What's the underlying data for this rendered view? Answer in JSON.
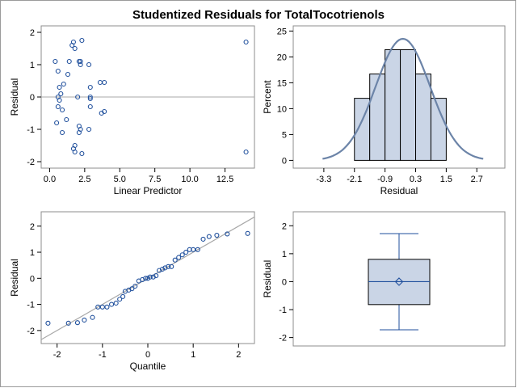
{
  "title": "Studentized Residuals for TotalTocotrienols",
  "colors": {
    "marker": "#1f4f9c",
    "bar_fill": "#cad5e6",
    "curve": "#6c84a8",
    "ref_line": "#a8a8a8",
    "box_line": "#1f4f9c"
  },
  "chart_data": [
    {
      "type": "scatter",
      "xlabel": "Linear Predictor",
      "ylabel": "Residual",
      "xlim": [
        -0.6,
        14.6
      ],
      "ylim": [
        -2.2,
        2.2
      ],
      "xticks": [
        "0.0",
        "2.5",
        "5.0",
        "7.5",
        "10.0",
        "12.5"
      ],
      "xtick_values": [
        0,
        2.5,
        5,
        7.5,
        10,
        12.5
      ],
      "yticks": [
        "-2",
        "-1",
        "0",
        "1",
        "2"
      ],
      "ytick_values": [
        -2,
        -1,
        0,
        1,
        2
      ],
      "reference_line_y": 0,
      "points": [
        [
          0.4,
          1.1
        ],
        [
          0.6,
          0.8
        ],
        [
          0.7,
          0.3
        ],
        [
          0.8,
          0.1
        ],
        [
          0.6,
          0.0
        ],
        [
          0.7,
          -0.1
        ],
        [
          0.6,
          -0.3
        ],
        [
          0.9,
          -0.4
        ],
        [
          0.5,
          -0.8
        ],
        [
          0.9,
          -1.1
        ],
        [
          1.0,
          0.4
        ],
        [
          1.3,
          0.7
        ],
        [
          1.2,
          -0.7
        ],
        [
          1.4,
          1.1
        ],
        [
          1.6,
          1.6
        ],
        [
          1.7,
          1.7
        ],
        [
          1.8,
          1.5
        ],
        [
          2.1,
          1.1
        ],
        [
          2.2,
          1.1
        ],
        [
          2.2,
          1.0
        ],
        [
          2.3,
          1.75
        ],
        [
          2.0,
          0.0
        ],
        [
          2.1,
          -0.9
        ],
        [
          2.2,
          -1.0
        ],
        [
          2.1,
          -1.1
        ],
        [
          1.8,
          -1.5
        ],
        [
          1.7,
          -1.6
        ],
        [
          1.8,
          -1.7
        ],
        [
          2.3,
          -1.75
        ],
        [
          2.8,
          1.0
        ],
        [
          2.9,
          0.3
        ],
        [
          2.9,
          0.0
        ],
        [
          2.9,
          -0.05
        ],
        [
          2.9,
          -0.3
        ],
        [
          2.8,
          -1.0
        ],
        [
          3.6,
          0.45
        ],
        [
          3.9,
          0.45
        ],
        [
          3.7,
          -0.5
        ],
        [
          3.9,
          -0.45
        ],
        [
          14.0,
          1.7
        ],
        [
          14.0,
          -1.7
        ]
      ]
    },
    {
      "type": "bar",
      "subtype": "histogram-with-normal-curve",
      "xlabel": "Residual",
      "ylabel": "Percent",
      "xlim": [
        -4.5,
        3.8
      ],
      "ylim": [
        -1.5,
        26
      ],
      "xticks": [
        "-3.3",
        "-2.1",
        "-0.9",
        "0.3",
        "1.5",
        "2.7"
      ],
      "xtick_values": [
        -3.3,
        -2.1,
        -0.9,
        0.3,
        1.5,
        2.7
      ],
      "yticks": [
        "0",
        "5",
        "10",
        "15",
        "20",
        "25"
      ],
      "ytick_values": [
        0,
        5,
        10,
        15,
        20,
        25
      ],
      "bin_width": 0.6,
      "bins": [
        {
          "center": -1.8,
          "value": 12
        },
        {
          "center": -1.2,
          "value": 16.7
        },
        {
          "center": -0.6,
          "value": 21.4
        },
        {
          "center": 0.0,
          "value": 21.4
        },
        {
          "center": 0.6,
          "value": 16.7
        },
        {
          "center": 1.2,
          "value": 12
        }
      ],
      "normal_curve": {
        "mean": -0.2,
        "sd": 1.07,
        "peak": 23.5,
        "x_range": [
          -3.35,
          2.95
        ]
      }
    },
    {
      "type": "scatter",
      "subtype": "qq-plot",
      "xlabel": "Quantile",
      "ylabel": "Residual",
      "xlim": [
        -2.35,
        2.35
      ],
      "ylim": [
        -2.5,
        2.55
      ],
      "xticks": [
        "-2",
        "-1",
        "0",
        "1",
        "2"
      ],
      "xtick_values": [
        -2,
        -1,
        0,
        1,
        2
      ],
      "yticks": [
        "-2",
        "-1",
        "0",
        "1",
        "2"
      ],
      "ytick_values": [
        -2,
        -1,
        0,
        1,
        2
      ],
      "reference_line": {
        "intercept": 0,
        "slope": 1.0
      },
      "points": [
        [
          -2.2,
          -1.72
        ],
        [
          -1.75,
          -1.72
        ],
        [
          -1.55,
          -1.7
        ],
        [
          -1.4,
          -1.6
        ],
        [
          -1.22,
          -1.5
        ],
        [
          -1.1,
          -1.1
        ],
        [
          -1.0,
          -1.1
        ],
        [
          -0.9,
          -1.1
        ],
        [
          -0.8,
          -1.0
        ],
        [
          -0.7,
          -0.95
        ],
        [
          -0.62,
          -0.8
        ],
        [
          -0.55,
          -0.7
        ],
        [
          -0.5,
          -0.5
        ],
        [
          -0.42,
          -0.45
        ],
        [
          -0.35,
          -0.4
        ],
        [
          -0.28,
          -0.3
        ],
        [
          -0.2,
          -0.1
        ],
        [
          -0.12,
          -0.05
        ],
        [
          -0.05,
          0.0
        ],
        [
          0.0,
          0.0
        ],
        [
          0.05,
          0.05
        ],
        [
          0.12,
          0.05
        ],
        [
          0.18,
          0.1
        ],
        [
          0.25,
          0.3
        ],
        [
          0.32,
          0.35
        ],
        [
          0.38,
          0.4
        ],
        [
          0.45,
          0.45
        ],
        [
          0.52,
          0.45
        ],
        [
          0.6,
          0.7
        ],
        [
          0.68,
          0.8
        ],
        [
          0.76,
          0.9
        ],
        [
          0.84,
          1.0
        ],
        [
          0.92,
          1.1
        ],
        [
          1.0,
          1.1
        ],
        [
          1.1,
          1.1
        ],
        [
          1.22,
          1.5
        ],
        [
          1.35,
          1.6
        ],
        [
          1.52,
          1.65
        ],
        [
          1.75,
          1.7
        ],
        [
          2.2,
          1.72
        ]
      ]
    },
    {
      "type": "box",
      "ylabel": "Residual",
      "ylim": [
        -2.3,
        2.5
      ],
      "yticks": [
        "-2",
        "-1",
        "0",
        "1",
        "2"
      ],
      "ytick_values": [
        -2,
        -1,
        0,
        1,
        2
      ],
      "min": -1.72,
      "q1": -0.82,
      "median": 0.0,
      "mean": 0.0,
      "q3": 0.8,
      "max": 1.72
    }
  ]
}
